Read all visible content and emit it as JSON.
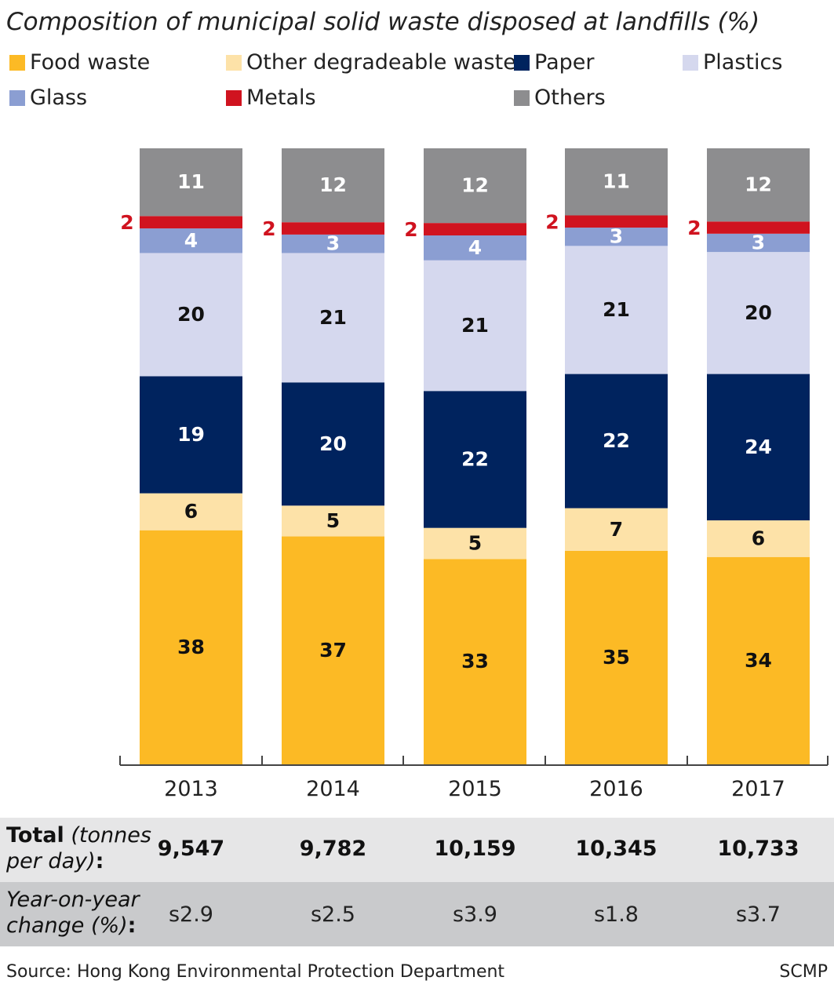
{
  "title": "Composition of municipal solid waste disposed at landfills (%)",
  "colors": {
    "food": "#fcba25",
    "otherdeg": "#fde2a8",
    "paper": "#00235e",
    "plastics": "#d5d8ee",
    "glass": "#8b9ed2",
    "metals": "#d0131f",
    "others": "#8d8d8f"
  },
  "chart_data": {
    "type": "bar",
    "stacked": true,
    "title": "Composition of municipal solid waste disposed at landfills (%)",
    "categories": [
      "2013",
      "2014",
      "2015",
      "2016",
      "2017"
    ],
    "series": [
      {
        "name": "Food waste",
        "key": "food",
        "values": [
          38,
          37,
          33,
          35,
          34
        ]
      },
      {
        "name": "Other degradeable waste",
        "key": "otherdeg",
        "values": [
          6,
          5,
          5,
          7,
          6
        ]
      },
      {
        "name": "Paper",
        "key": "paper",
        "values": [
          19,
          20,
          22,
          22,
          24
        ]
      },
      {
        "name": "Plastics",
        "key": "plastics",
        "values": [
          20,
          21,
          21,
          21,
          20
        ]
      },
      {
        "name": "Glass",
        "key": "glass",
        "values": [
          4,
          3,
          4,
          3,
          3
        ]
      },
      {
        "name": "Metals",
        "key": "metals",
        "values": [
          2,
          2,
          2,
          2,
          2
        ]
      },
      {
        "name": "Others",
        "key": "others",
        "values": [
          11,
          12,
          12,
          11,
          12
        ]
      }
    ],
    "legend_position": "top",
    "grid": false,
    "ylim": [
      0,
      100
    ]
  },
  "legend_order": [
    "food",
    "otherdeg",
    "paper",
    "plastics",
    "glass",
    "metals",
    "others"
  ],
  "table": {
    "total_label_bold": "Total",
    "total_label_italic": "(tonnes per day)",
    "total_label_colon": ":",
    "totals": [
      "9,547",
      "9,782",
      "10,159",
      "10,345",
      "10,733"
    ],
    "yoy_label_italic": "Year-on-year change (%)",
    "yoy_label_colon": ":",
    "yoy": [
      "s2.9",
      "s2.5",
      "s3.9",
      "s1.8",
      "s3.7"
    ]
  },
  "source": "Source: Hong Kong Environmental Protection Department",
  "credit": "SCMP"
}
